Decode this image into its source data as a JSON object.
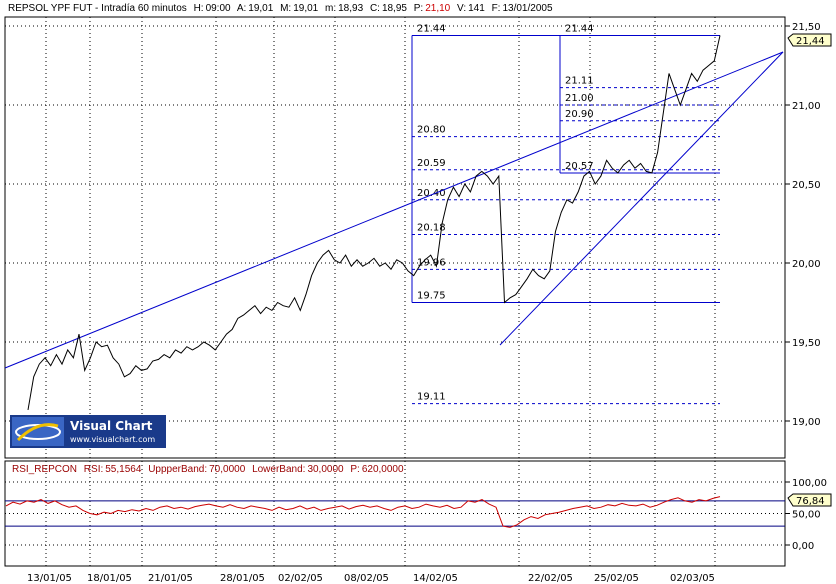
{
  "header": {
    "instrument": "REPSOL YPF FUT - Intradía 60 minutos",
    "h_label": "H:",
    "h_value": "09:00",
    "a_label": "A:",
    "a_value": "19,01",
    "m_label": "M:",
    "m_value": "19,01",
    "min_label": "m:",
    "min_value": "18,93",
    "c_label": "C:",
    "c_value": "18,95",
    "p_label": "P:",
    "p_value": "21,10",
    "v_label": "V:",
    "v_value": "141",
    "f_label": "F:",
    "f_value": "13/01/2005"
  },
  "price_badge": "21,44",
  "rsi_badge": "76,84",
  "logo": {
    "title": "Visual Chart",
    "url": "www.visualchart.com"
  },
  "rsi_header": {
    "name": "RSI_REPCON",
    "rsi_label": "RSI:",
    "rsi_value": "55,1564",
    "upper_label": "UppperBand:",
    "upper_value": "70,0000",
    "lower_label": "LowerBand:",
    "lower_value": "30,0000",
    "p_label": "P:",
    "p_value": "620,0000"
  },
  "colors": {
    "line": "#000000",
    "trend": "#0000cc",
    "fib": "#0000cc",
    "rsi": "#cc0000",
    "band": "#000080",
    "grid": "#000000"
  },
  "chart_data": [
    {
      "type": "line",
      "series": [
        {
          "values": [
            19.07,
            19.28,
            19.36,
            19.4,
            19.35,
            19.42,
            19.36,
            19.45,
            19.4,
            19.55,
            19.32,
            19.4,
            19.5,
            19.47,
            19.48,
            19.4,
            19.36,
            19.28,
            19.3,
            19.35,
            19.32,
            19.33,
            19.38,
            19.39,
            19.42,
            19.4,
            19.45,
            19.43,
            19.47,
            19.45,
            19.47,
            19.5,
            19.48,
            19.45,
            19.5,
            19.55,
            19.58,
            19.65,
            19.67,
            19.7,
            19.73,
            19.68,
            19.72,
            19.7,
            19.75,
            19.73,
            19.72,
            19.78,
            19.7,
            19.8,
            19.92,
            20.0,
            20.05,
            20.08,
            20.02,
            20.0,
            20.05,
            19.98,
            20.02,
            19.98,
            20.0,
            20.03,
            19.98,
            20.0,
            19.96,
            20.02,
            20.0,
            19.95,
            19.92,
            19.98,
            20.02,
            20.05,
            19.98,
            20.25,
            20.4,
            20.48,
            20.42,
            20.5,
            20.45,
            20.55,
            20.58,
            20.55,
            20.5,
            20.55,
            19.75,
            19.78,
            19.8,
            19.85,
            19.9,
            19.96,
            19.92,
            19.9,
            19.95,
            20.2,
            20.32,
            20.4,
            20.38,
            20.45,
            20.55,
            20.58,
            20.5,
            20.55,
            20.65,
            20.6,
            20.57,
            20.62,
            20.65,
            20.6,
            20.63,
            20.58,
            20.57,
            20.7,
            20.95,
            21.2,
            21.1,
            21.0,
            21.1,
            21.2,
            21.15,
            21.22,
            21.25,
            21.28,
            21.44
          ]
        }
      ],
      "x_tick_labels": [
        "13/01/05",
        "18/01/05",
        "21/01/05",
        "28/01/05",
        "02/02/05",
        "08/02/05",
        "14/02/05",
        "22/02/05",
        "25/02/05",
        "02/03/05"
      ],
      "y_tick_labels": [
        "21,50",
        "21,00",
        "20,50",
        "20,00",
        "19,50",
        "19,00"
      ],
      "ylim": [
        18.75,
        21.5
      ],
      "fib_levels": [
        {
          "label": "21.44",
          "value": 21.44
        },
        {
          "label": "21.11",
          "value": 21.11
        },
        {
          "label": "21.00",
          "value": 21.0
        },
        {
          "label": "20.90",
          "value": 20.9
        },
        {
          "label": "20.80",
          "value": 20.8
        },
        {
          "label": "20.59",
          "value": 20.59
        },
        {
          "label": "20.57",
          "value": 20.57
        },
        {
          "label": "20.40",
          "value": 20.4
        },
        {
          "label": "20.18",
          "value": 20.18
        },
        {
          "label": "19.96",
          "value": 19.96
        },
        {
          "label": "19.75",
          "value": 19.75
        },
        {
          "label": "19.11",
          "value": 19.11
        }
      ]
    },
    {
      "type": "line",
      "series": [
        {
          "values": [
            62,
            68,
            65,
            70,
            68,
            72,
            66,
            70,
            64,
            60,
            62,
            55,
            50,
            48,
            52,
            50,
            55,
            53,
            56,
            54,
            58,
            55,
            60,
            62,
            58,
            60,
            57,
            61,
            63,
            65,
            62,
            60,
            64,
            60,
            58,
            62,
            60,
            58,
            55,
            60,
            56,
            58,
            62,
            57,
            60,
            55,
            58,
            60,
            62,
            57,
            61,
            63,
            60,
            62,
            58,
            55,
            60,
            62,
            58,
            60,
            65,
            62,
            60,
            63,
            58,
            60,
            70,
            68,
            72,
            65,
            60,
            30,
            28,
            32,
            40,
            45,
            42,
            48,
            50,
            52,
            55,
            58,
            60,
            62,
            58,
            60,
            64,
            62,
            66,
            63,
            62,
            65,
            60,
            63,
            68,
            72,
            75,
            70,
            68,
            72,
            70,
            74,
            76.84
          ]
        }
      ],
      "y_tick_labels": [
        "100,00",
        "50,00",
        "0,00"
      ],
      "bands": [
        70,
        30
      ],
      "ylim": [
        -10,
        110
      ]
    }
  ]
}
